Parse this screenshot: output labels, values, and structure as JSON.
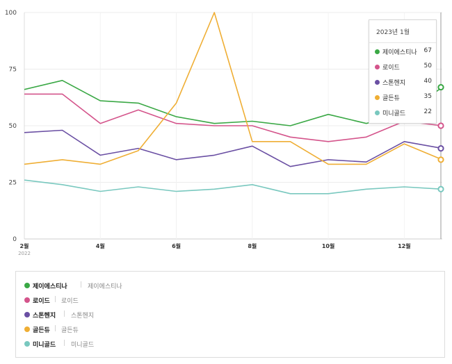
{
  "chart_data": {
    "type": "line",
    "title": "",
    "xlabel": "",
    "ylabel": "",
    "ylim": [
      0,
      100
    ],
    "yticks": [
      "0",
      "25",
      "50",
      "75",
      "100"
    ],
    "x": [
      "2022-02",
      "2022-03",
      "2022-04",
      "2022-05",
      "2022-06",
      "2022-07",
      "2022-08",
      "2022-09",
      "2022-10",
      "2022-11",
      "2022-12",
      "2023-01"
    ],
    "xtick_labels": [
      "2월",
      "4월",
      "6월",
      "8월",
      "10월",
      "12월"
    ],
    "xtick_sub": "2022",
    "grid": true,
    "series": [
      {
        "name": "제이에스티나",
        "color": "#3aa845",
        "values": [
          66,
          70,
          61,
          60,
          54,
          51,
          52,
          50,
          55,
          51,
          55,
          67
        ]
      },
      {
        "name": "로이드",
        "color": "#d4548b",
        "values": [
          64,
          64,
          51,
          57,
          51,
          50,
          50,
          45,
          43,
          45,
          52,
          50
        ]
      },
      {
        "name": "스톤헨지",
        "color": "#6a4fa3",
        "values": [
          47,
          48,
          37,
          40,
          35,
          37,
          41,
          32,
          35,
          34,
          43,
          40
        ]
      },
      {
        "name": "골든듀",
        "color": "#efae34",
        "values": [
          33,
          35,
          33,
          39,
          60,
          100,
          43,
          43,
          33,
          33,
          42,
          35
        ]
      },
      {
        "name": "미니골드",
        "color": "#79c8bf",
        "values": [
          26,
          24,
          21,
          23,
          21,
          22,
          24,
          20,
          20,
          22,
          23,
          22
        ]
      }
    ]
  },
  "tooltip": {
    "title": "2023년 1월",
    "rows": [
      {
        "name": "제이에스티나",
        "value": "67"
      },
      {
        "name": "로이드",
        "value": "50"
      },
      {
        "name": "스톤헨지",
        "value": "40"
      },
      {
        "name": "골든듀",
        "value": "35"
      },
      {
        "name": "미니골드",
        "value": "22"
      }
    ]
  },
  "legend": {
    "items": [
      {
        "name": "제이에스티나",
        "alias": "제이에스티나"
      },
      {
        "name": "로이드",
        "alias": "로이드"
      },
      {
        "name": "스톤헨지",
        "alias": "스톤헨지"
      },
      {
        "name": "골든듀",
        "alias": "골든듀"
      },
      {
        "name": "미니골드",
        "alias": "미니골드"
      }
    ],
    "separator": "|"
  }
}
